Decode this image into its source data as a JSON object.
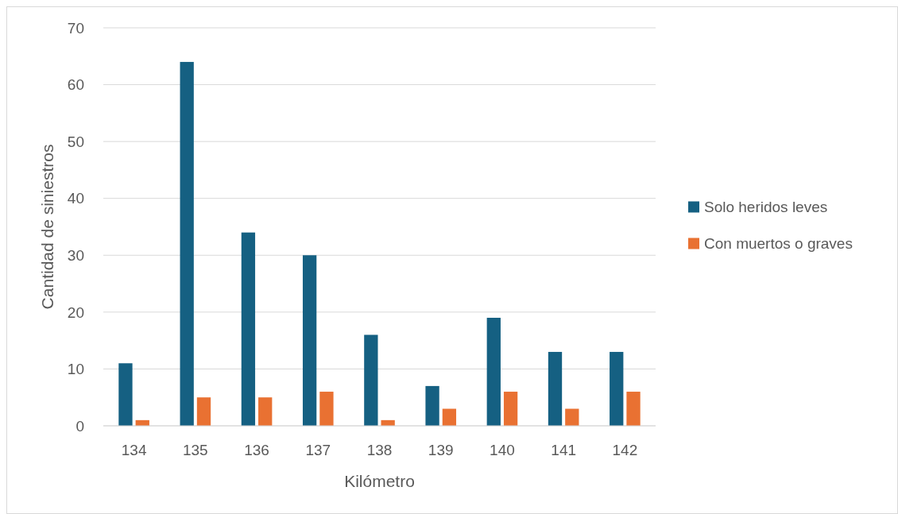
{
  "chart_data": {
    "type": "bar",
    "xlabel": "Kilómetro",
    "ylabel": "Cantidad de siniestros",
    "categories": [
      "134",
      "135",
      "136",
      "137",
      "138",
      "139",
      "140",
      "141",
      "142"
    ],
    "series": [
      {
        "name": "Solo heridos leves",
        "color": "#156082",
        "values": [
          11,
          64,
          34,
          30,
          16,
          7,
          19,
          13,
          13
        ]
      },
      {
        "name": "Con muertos o graves",
        "color": "#e97132",
        "values": [
          1,
          5,
          5,
          6,
          1,
          3,
          6,
          3,
          6
        ]
      }
    ],
    "ylim": [
      0,
      70
    ],
    "yticks": [
      0,
      10,
      20,
      30,
      40,
      50,
      60,
      70
    ],
    "grid": "y",
    "legend": "right"
  }
}
